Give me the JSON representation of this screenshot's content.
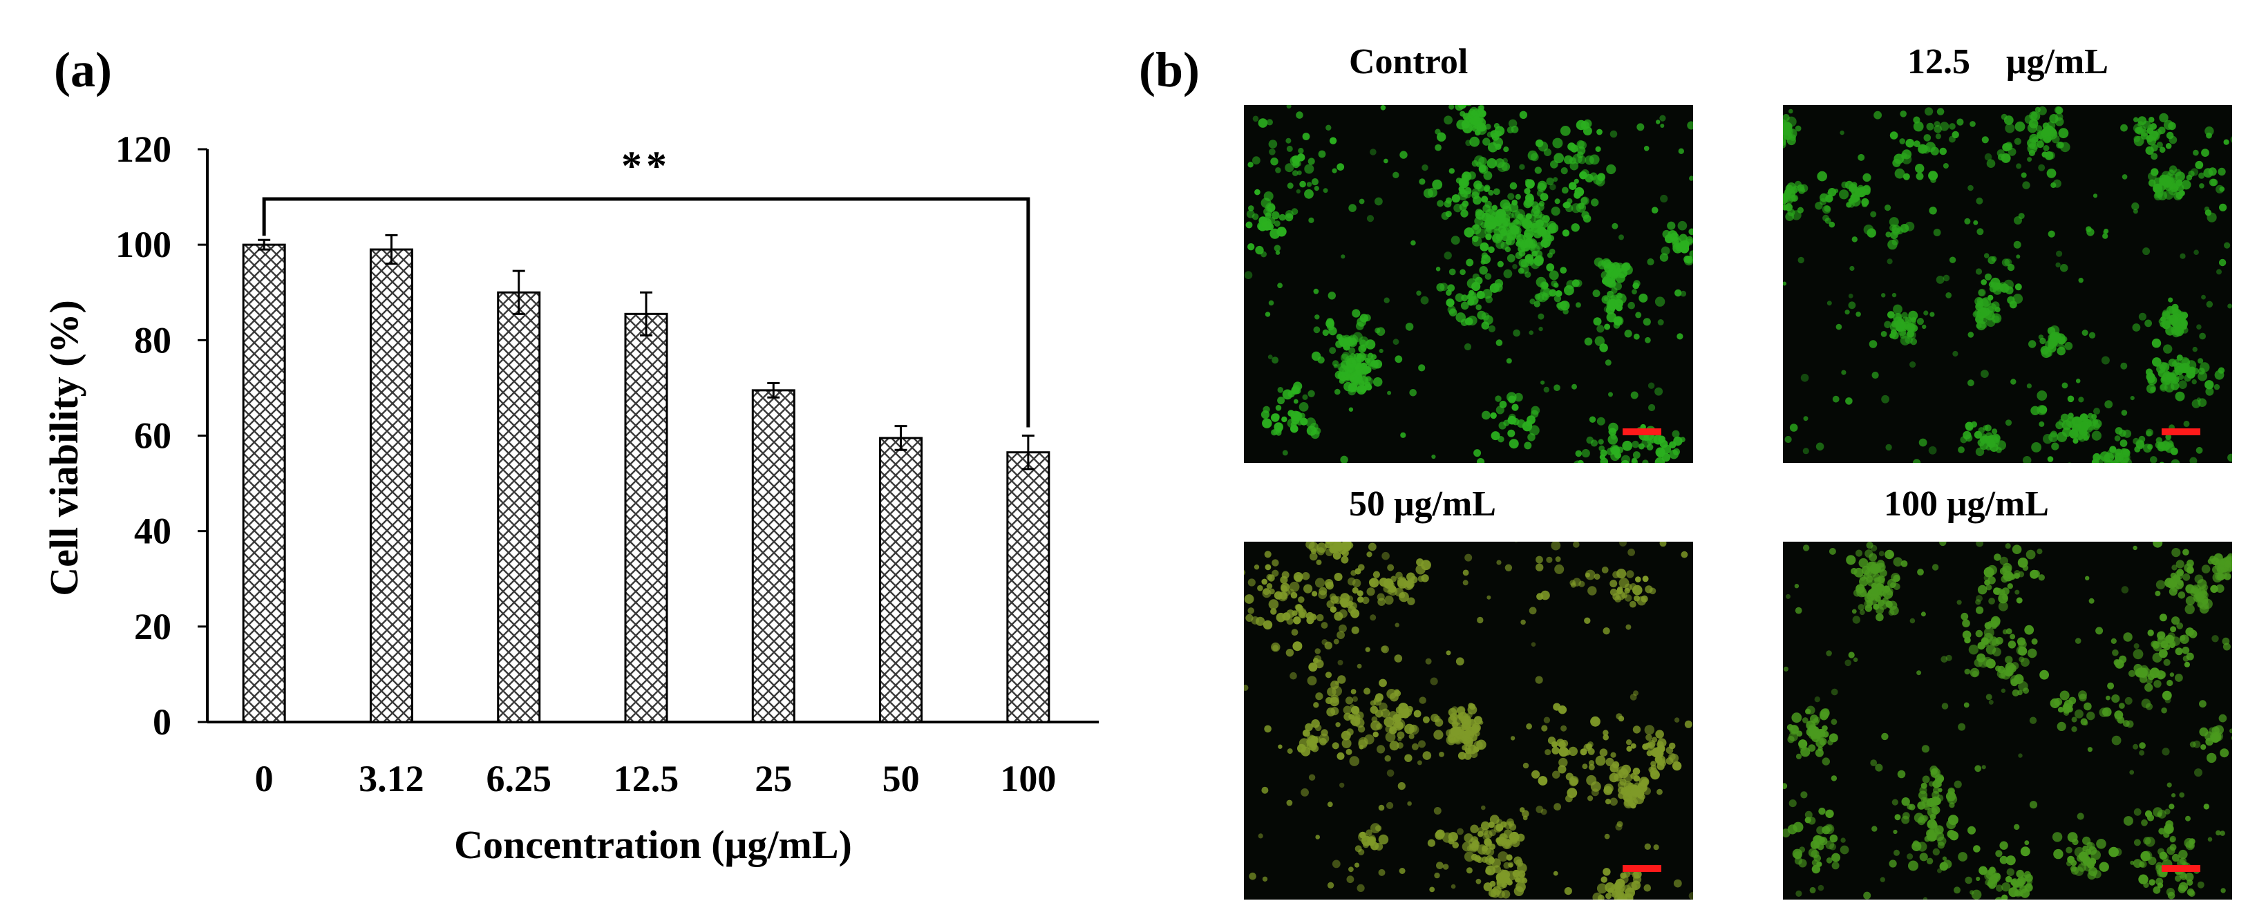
{
  "panels": {
    "a_label": "(a)",
    "b_label": "(b)"
  },
  "chart_data": {
    "type": "bar",
    "categories": [
      "0",
      "3.12",
      "6.25",
      "12.5",
      "25",
      "50",
      "100"
    ],
    "values": [
      100,
      99,
      90,
      85.5,
      69.5,
      59.5,
      56.5
    ],
    "errors": [
      1,
      3,
      4.5,
      4.5,
      1.5,
      2.5,
      3.5
    ],
    "xlabel": "Concentration (μg/mL)",
    "ylabel": "Cell viability (%)",
    "ylim": [
      0,
      120
    ],
    "yticks": [
      "0",
      "20",
      "40",
      "60",
      "80",
      "100",
      "120"
    ],
    "grid": false,
    "bar_fill": "crosshatch",
    "significance": {
      "from": "0",
      "to": "100",
      "label": "**"
    }
  },
  "images": [
    {
      "label": "Control",
      "tint": "#2bb01f",
      "scale_bar_color": "#ff1a1a"
    },
    {
      "label": "12.5    μg/mL",
      "tint": "#2aa61c",
      "scale_bar_color": "#ff1a1a"
    },
    {
      "label": "50 μg/mL",
      "tint": "#7f9a28",
      "scale_bar_color": "#ff1a1a"
    },
    {
      "label": "100 μg/mL",
      "tint": "#4a9a1e",
      "scale_bar_color": "#ff1a1a"
    }
  ]
}
